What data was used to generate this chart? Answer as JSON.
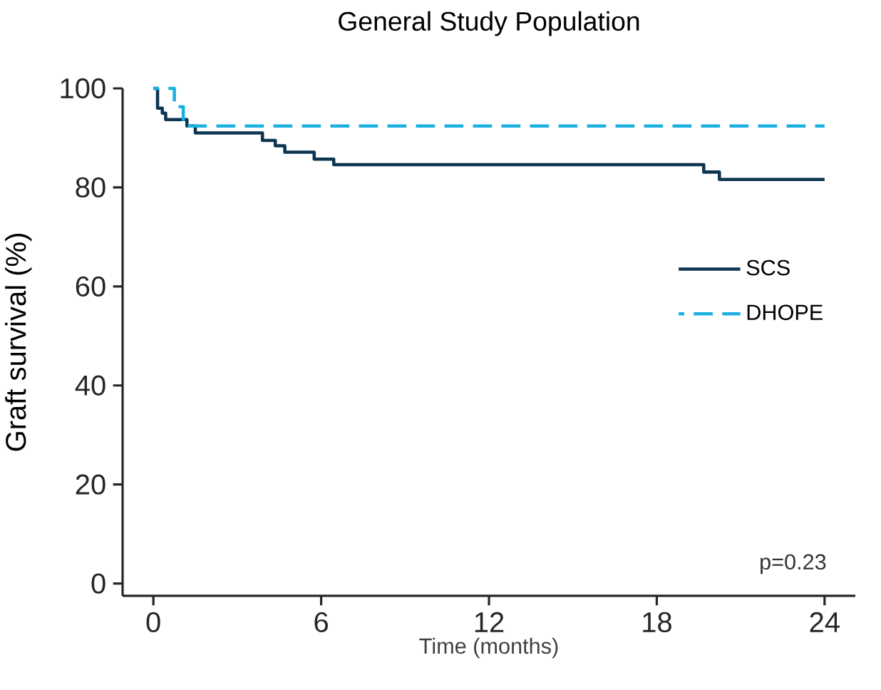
{
  "chart_data": {
    "type": "step",
    "title": "General Study Population",
    "xlabel": "Time (months)",
    "ylabel": "Graft survival (%)",
    "series": [
      {
        "name": "SCS",
        "color": "#0d3550",
        "line_style": "solid",
        "x": [
          0,
          0.15,
          0.32,
          0.44,
          1.2,
          1.5,
          3.9,
          4.36,
          4.7,
          5.75,
          6.45,
          19.68,
          20.24,
          24
        ],
        "values": [
          100,
          96,
          95,
          93.7,
          92.4,
          91,
          89.5,
          88.4,
          87.1,
          85.7,
          84.6,
          83.1,
          81.6,
          81.6
        ]
      },
      {
        "name": "DHOPE",
        "color": "#1ab0e0",
        "line_style": "dashed",
        "x": [
          0,
          0.75,
          1.07,
          24
        ],
        "values": [
          100,
          96.3,
          92.4,
          92.4
        ]
      }
    ],
    "xlim": [
      -1.1,
      25.1
    ],
    "ylim": [
      -2.5,
      100
    ],
    "xticks": [
      0,
      6,
      12,
      18,
      24
    ],
    "yticks": [
      0,
      20,
      40,
      60,
      80,
      100
    ],
    "legend": "right",
    "grid": false,
    "marker": "none",
    "annotations": [
      "p=0.23"
    ]
  }
}
